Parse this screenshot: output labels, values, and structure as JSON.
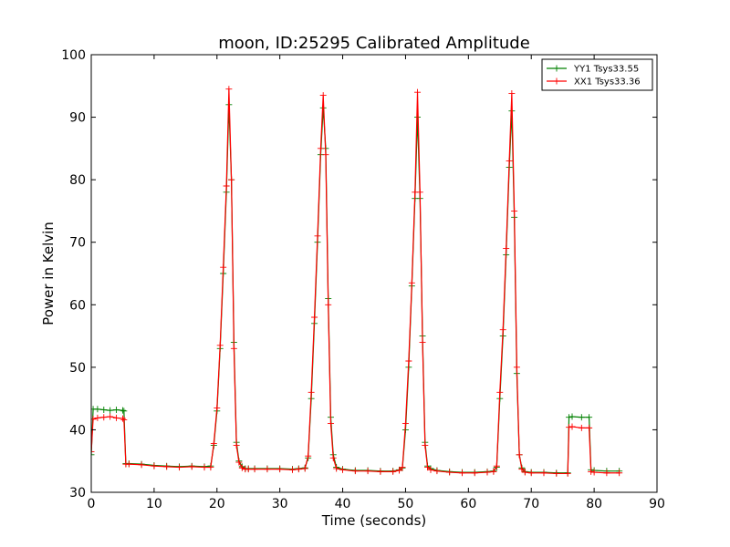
{
  "chart_data": {
    "type": "line",
    "title": "moon, ID:25295 Calibrated Amplitude",
    "xlabel": "Time (seconds)",
    "ylabel": "Power in Kelvin",
    "xlim": [
      0,
      90
    ],
    "ylim": [
      30,
      100
    ],
    "xticks": [
      0,
      10,
      20,
      30,
      40,
      50,
      60,
      70,
      80,
      90
    ],
    "yticks": [
      30,
      40,
      50,
      60,
      70,
      80,
      90,
      100
    ],
    "grid": false,
    "legend_position": "top-right",
    "series": [
      {
        "name": "YY1 Tsys33.55",
        "color": "#008000",
        "x": [
          0,
          0.3,
          1,
          2,
          3,
          4,
          5,
          5.2,
          5.5,
          6,
          8,
          10,
          12,
          14,
          16,
          18,
          19,
          19.5,
          20,
          20.5,
          21,
          21.5,
          21.9,
          22.3,
          22.7,
          23.1,
          23.5,
          24,
          24.5,
          25,
          26,
          28,
          30,
          32,
          33,
          34,
          34.5,
          35,
          35.5,
          36,
          36.5,
          36.9,
          37.3,
          37.7,
          38.1,
          38.5,
          39,
          40,
          42,
          44,
          46,
          48,
          49,
          49.5,
          50,
          50.5,
          51,
          51.5,
          51.9,
          52.3,
          52.7,
          53.1,
          53.5,
          54,
          55,
          57,
          59,
          61,
          63,
          64,
          64.5,
          65,
          65.5,
          66,
          66.5,
          66.9,
          67.3,
          67.7,
          68.1,
          68.5,
          69,
          70,
          72,
          74,
          75.8,
          76,
          76.5,
          78,
          79.2,
          79.5,
          80,
          82,
          84
        ],
        "values": [
          36,
          43.3,
          43.3,
          43.2,
          43.1,
          43.2,
          43.1,
          43.0,
          34.6,
          34.6,
          34.5,
          34.3,
          34.2,
          34.1,
          34.2,
          34.1,
          34.2,
          37.5,
          43,
          53,
          65,
          78,
          92,
          80,
          54,
          38,
          35,
          34.1,
          33.8,
          33.8,
          33.8,
          33.8,
          33.8,
          33.7,
          33.8,
          33.9,
          35.5,
          45,
          57,
          70,
          84,
          91.5,
          85,
          61,
          42,
          36,
          34,
          33.7,
          33.5,
          33.5,
          33.4,
          33.4,
          33.6,
          33.9,
          40,
          50,
          63,
          77,
          90,
          77,
          55,
          38,
          34.2,
          33.8,
          33.5,
          33.3,
          33.2,
          33.2,
          33.3,
          33.4,
          34.0,
          45,
          55,
          68,
          82,
          91,
          74,
          49,
          36,
          33.9,
          33.3,
          33.2,
          33.2,
          33.1,
          33.1,
          42,
          42.1,
          42,
          42,
          33.6,
          33.5,
          33.4,
          33.4
        ]
      },
      {
        "name": "XX1 Tsys33.36",
        "color": "#ff0000",
        "x": [
          0,
          0.3,
          1,
          2,
          3,
          4,
          5,
          5.2,
          5.5,
          6,
          8,
          10,
          12,
          14,
          16,
          18,
          19,
          19.5,
          20,
          20.5,
          21,
          21.5,
          21.9,
          22.3,
          22.7,
          23.1,
          23.5,
          24,
          24.5,
          25,
          26,
          28,
          30,
          32,
          33,
          34,
          34.5,
          35,
          35.5,
          36,
          36.5,
          36.9,
          37.3,
          37.7,
          38.1,
          38.5,
          39,
          40,
          42,
          44,
          46,
          48,
          49,
          49.5,
          50,
          50.5,
          51,
          51.5,
          51.9,
          52.3,
          52.7,
          53.1,
          53.5,
          54,
          55,
          57,
          59,
          61,
          63,
          64,
          64.5,
          65,
          65.5,
          66,
          66.5,
          66.9,
          67.3,
          67.7,
          68.1,
          68.5,
          69,
          70,
          72,
          74,
          75.8,
          76,
          76.5,
          78,
          79.2,
          79.5,
          80,
          82,
          84
        ],
        "values": [
          36.5,
          41.7,
          41.9,
          42,
          42.1,
          41.9,
          41.8,
          41.6,
          34.5,
          34.5,
          34.4,
          34.2,
          34.1,
          34.0,
          34.1,
          34.0,
          34.0,
          37.8,
          43.5,
          53.5,
          66,
          79,
          94.5,
          80,
          53,
          37.5,
          34.8,
          33.9,
          33.7,
          33.7,
          33.7,
          33.7,
          33.7,
          33.6,
          33.7,
          33.8,
          35.8,
          46,
          58,
          71,
          85,
          93.5,
          84,
          60,
          41,
          35.5,
          33.8,
          33.6,
          33.4,
          33.4,
          33.3,
          33.3,
          33.5,
          34.0,
          41,
          51,
          63.5,
          78,
          94,
          78,
          54,
          37.5,
          34.0,
          33.6,
          33.4,
          33.2,
          33.1,
          33.1,
          33.2,
          33.3,
          34.2,
          46,
          56,
          69,
          83,
          93.8,
          75,
          50,
          36,
          33.7,
          33.2,
          33.1,
          33.1,
          33.0,
          33.0,
          40.4,
          40.5,
          40.3,
          40.3,
          33.3,
          33.2,
          33.1,
          33.1
        ]
      }
    ]
  }
}
